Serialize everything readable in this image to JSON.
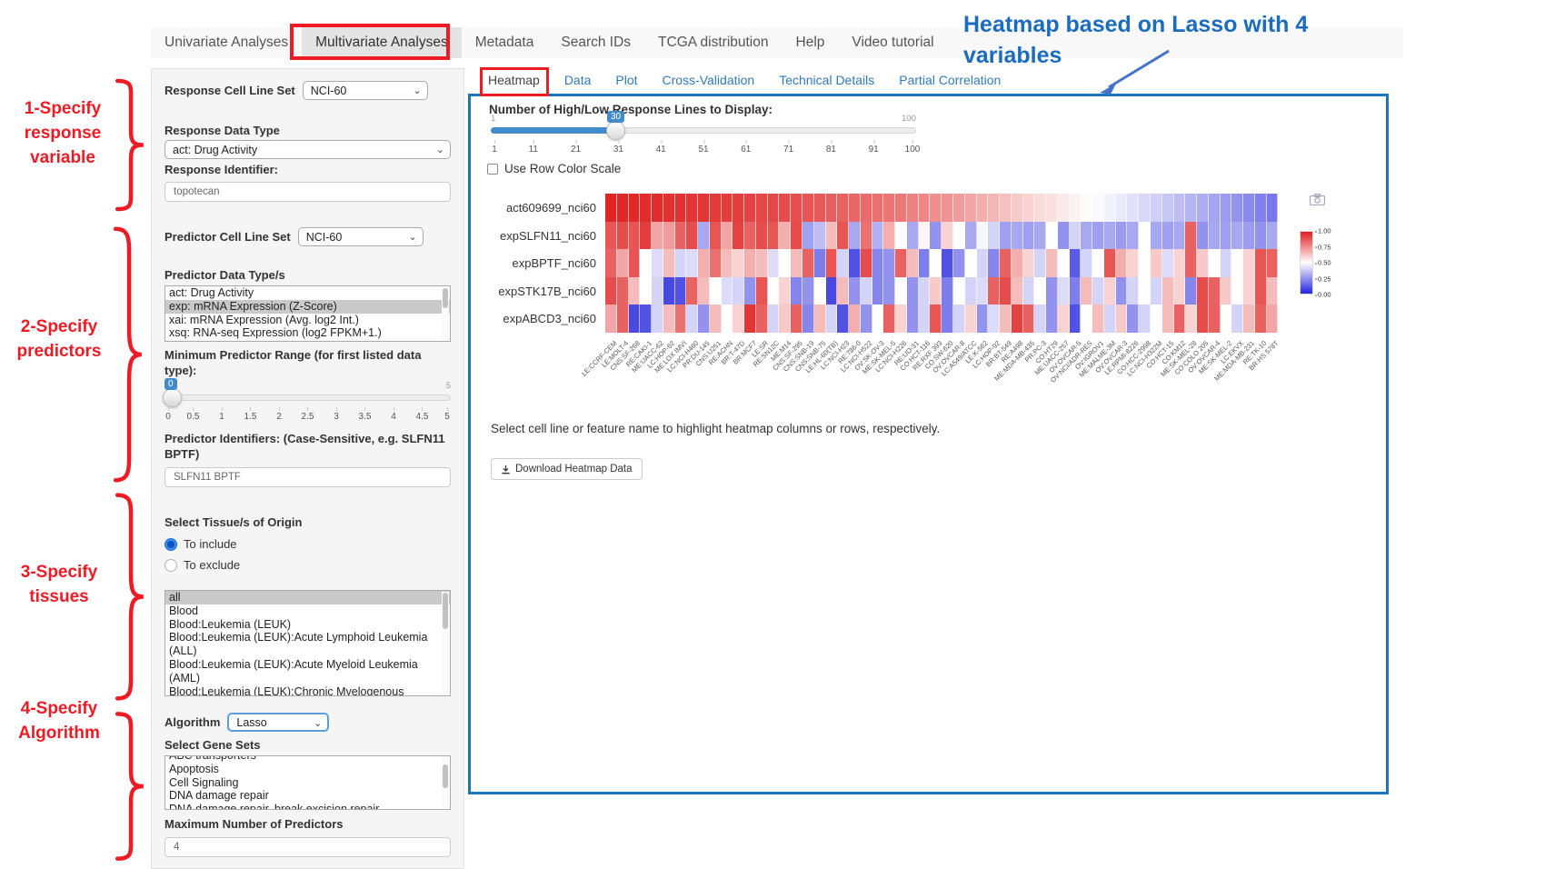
{
  "colors": {
    "annotation_red": "#ee1b24",
    "annotation_blue": "#1b6cbe",
    "panel_border_blue": "#1c75bc",
    "slider_blue": "#428bca",
    "link_blue": "#337ab7",
    "heatmap_high": "#df1f1f",
    "heatmap_mid": "#ffffff",
    "heatmap_low": "#2626dd"
  },
  "nav": {
    "items": [
      {
        "label": "Univariate Analyses",
        "active": false
      },
      {
        "label": "Multivariate Analyses",
        "active": true
      },
      {
        "label": "Metadata",
        "active": false
      },
      {
        "label": "Search IDs",
        "active": false
      },
      {
        "label": "TCGA distribution",
        "active": false
      },
      {
        "label": "Help",
        "active": false
      },
      {
        "label": "Video tutorial",
        "active": false
      }
    ]
  },
  "annotations": {
    "steps": [
      {
        "lines": [
          "1-Specify",
          "response",
          "variable"
        ]
      },
      {
        "lines": [
          "2-Specify",
          "predictors"
        ]
      },
      {
        "lines": [
          "3-Specify",
          "tissues"
        ]
      },
      {
        "lines": [
          "4-Specify",
          "Algorithm"
        ]
      }
    ],
    "callout": {
      "line1": "Heatmap based on Lasso with 4",
      "line2": "variables"
    }
  },
  "sidebar": {
    "response_cell_line_set": {
      "label": "Response Cell Line Set",
      "value": "NCI-60"
    },
    "response_data_type": {
      "label": "Response Data Type",
      "value": "act: Drug Activity"
    },
    "response_identifier": {
      "label": "Response Identifier:",
      "value": "topotecan"
    },
    "predictor_cell_line_set": {
      "label": "Predictor Cell Line Set",
      "value": "NCI-60"
    },
    "predictor_data_types": {
      "label": "Predictor Data Type/s",
      "options": [
        "act: Drug Activity",
        "exp: mRNA Expression (Z-Score)",
        "xai: mRNA Expression (Avg. log2 Int.)",
        "xsq: RNA-seq Expression (log2 FPKM+1.)"
      ],
      "selected": "exp: mRNA Expression (Z-Score)"
    },
    "min_predictor_range": {
      "label": "Minimum Predictor Range (for first listed data type):",
      "value": "0",
      "min": "0",
      "max": "5",
      "ticks": [
        "0",
        "0.5",
        "1",
        "1.5",
        "2",
        "2.5",
        "3",
        "3.5",
        "4",
        "4.5",
        "5"
      ]
    },
    "predictor_identifiers": {
      "label": "Predictor Identifiers: (Case-Sensitive, e.g. SLFN11 BPTF)",
      "value": "SLFN11 BPTF"
    },
    "tissues": {
      "label": "Select Tissue/s of Origin",
      "radios": [
        {
          "label": "To include",
          "checked": true
        },
        {
          "label": "To exclude",
          "checked": false
        }
      ],
      "options": [
        "all",
        "Blood",
        "Blood:Leukemia (LEUK)",
        "Blood:Leukemia (LEUK):Acute Lymphoid Leukemia (ALL)",
        "Blood:Leukemia (LEUK):Acute Myeloid Leukemia (AML)",
        "Blood:Leukemia (LEUK):Chronic Myelogenous Leukemia (CML)"
      ],
      "selected": "all"
    },
    "algorithm": {
      "label": "Algorithm",
      "value": "Lasso"
    },
    "gene_sets": {
      "label": "Select Gene Sets",
      "options": [
        "ABC transporters",
        "Apoptosis",
        "Cell Signaling",
        "DNA damage repair",
        "DNA damage repair, break excision repair"
      ]
    },
    "max_predictors": {
      "label": "Maximum Number of Predictors",
      "value": "4"
    }
  },
  "tabs": [
    {
      "label": "Heatmap",
      "active": true
    },
    {
      "label": "Data",
      "active": false
    },
    {
      "label": "Plot",
      "active": false
    },
    {
      "label": "Cross-Validation",
      "active": false
    },
    {
      "label": "Technical Details",
      "active": false
    },
    {
      "label": "Partial Correlation",
      "active": false
    }
  ],
  "heatmap_panel": {
    "slider": {
      "label": "Number of High/Low Response Lines to Display:",
      "value": "30",
      "min": "1",
      "max": "100",
      "ticks": [
        "1",
        "11",
        "21",
        "31",
        "41",
        "51",
        "61",
        "71",
        "81",
        "91",
        "100"
      ]
    },
    "row_scale_checkbox": {
      "label": "Use Row Color Scale",
      "checked": false
    },
    "hint": "Select cell line or feature name to highlight heatmap columns or rows, respectively.",
    "download_button": "Download Heatmap Data"
  },
  "chart_data": {
    "type": "heatmap",
    "title": "",
    "legend_position": "right",
    "rows": [
      "act609699_nci60",
      "expSLFN11_nci60",
      "expBPTF_nci60",
      "expSTK17B_nci60",
      "expABCD3_nci60"
    ],
    "columns": [
      "LE:CCRF-CEM",
      "LE:MOLT-4",
      "CNS:SF-268",
      "RE:CAKI-1",
      "ME:UACC-62",
      "LC:HOP-62",
      "ME:LOX IMVI",
      "LC:NCI-H460",
      "PR:DU-145",
      "CNS:U251",
      "RE:ACHN",
      "BR:T-47D",
      "BR:MCF7",
      "LE:SR",
      "RE:SN12C",
      "ME:M14",
      "CNS:SF-295",
      "CNS:SNB-19",
      "CNS:SNB-75",
      "LE:HL-60(TB)",
      "LC:NCI-H23",
      "RE:786-0",
      "LC:NCI-H522",
      "OV:SK-OV-3",
      "ME:SK-MEL-5",
      "LC:NCI-H226",
      "RE:UO-31",
      "CO:HCT-116",
      "RE:RXF 393",
      "CO:SW-620",
      "OV:OVCAR-8",
      "LC:A549/ATCC",
      "LE:K-562",
      "LC:HOP-92",
      "BR:BT-549",
      "RE:A498",
      "ME:MDA-MB-435",
      "PR:PC-3",
      "CO:HT29",
      "ME:UACC-257",
      "OV:OVCAR-5",
      "OV:NCI/ADR-RES",
      "OV:IGROV1",
      "ME:MALME-3M",
      "OV:OVCAR-3",
      "LE:RPMI-8226",
      "CO:HCC-2998",
      "LC:NCI-H322M",
      "CO:HCT-15",
      "CO:KM12",
      "ME:SK-MEL-28",
      "CO:COLO 205",
      "OV:OVCAR-4",
      "ME:SK-MEL-2",
      "LC:EKVX",
      "ME:MDA-MB-231",
      "RE:TK-10",
      "BR:HS 578T"
    ],
    "values": [
      [
        0.99,
        0.98,
        0.98,
        0.97,
        0.97,
        0.96,
        0.96,
        0.95,
        0.95,
        0.94,
        0.93,
        0.93,
        0.92,
        0.91,
        0.91,
        0.9,
        0.89,
        0.88,
        0.87,
        0.86,
        0.85,
        0.84,
        0.83,
        0.82,
        0.81,
        0.8,
        0.78,
        0.77,
        0.75,
        0.74,
        0.72,
        0.7,
        0.68,
        0.66,
        0.64,
        0.62,
        0.6,
        0.58,
        0.57,
        0.55,
        0.53,
        0.51,
        0.49,
        0.47,
        0.45,
        0.43,
        0.41,
        0.39,
        0.37,
        0.35,
        0.33,
        0.31,
        0.29,
        0.27,
        0.25,
        0.23,
        0.21,
        0.19
      ],
      [
        0.88,
        0.9,
        0.88,
        0.93,
        0.7,
        0.72,
        0.85,
        0.9,
        0.3,
        0.88,
        0.7,
        0.92,
        0.85,
        0.9,
        0.88,
        0.68,
        0.9,
        0.28,
        0.35,
        0.65,
        0.88,
        0.3,
        0.82,
        0.32,
        0.68,
        0.5,
        0.3,
        0.52,
        0.25,
        0.6,
        0.5,
        0.3,
        0.48,
        0.4,
        0.28,
        0.3,
        0.28,
        0.3,
        0.5,
        0.25,
        0.4,
        0.3,
        0.28,
        0.3,
        0.27,
        0.3,
        0.5,
        0.3,
        0.28,
        0.3,
        0.85,
        0.25,
        0.3,
        0.28,
        0.3,
        0.27,
        0.25,
        0.3
      ],
      [
        0.85,
        0.7,
        0.88,
        0.5,
        0.42,
        0.65,
        0.4,
        0.42,
        0.68,
        0.82,
        0.65,
        0.6,
        0.68,
        0.65,
        0.42,
        0.5,
        0.65,
        0.85,
        0.2,
        0.88,
        0.4,
        0.1,
        0.9,
        0.22,
        0.25,
        0.85,
        0.65,
        0.2,
        0.5,
        0.1,
        0.25,
        0.5,
        0.4,
        0.22,
        0.85,
        0.68,
        0.6,
        0.4,
        0.65,
        0.5,
        0.12,
        0.4,
        0.5,
        0.88,
        0.68,
        0.6,
        0.5,
        0.62,
        0.42,
        0.6,
        0.85,
        0.62,
        0.5,
        0.4,
        0.5,
        0.6,
        0.88,
        0.85
      ],
      [
        0.9,
        0.85,
        0.65,
        0.5,
        0.4,
        0.08,
        0.1,
        0.85,
        0.65,
        0.5,
        0.42,
        0.4,
        0.25,
        0.88,
        0.5,
        0.6,
        0.22,
        0.25,
        0.5,
        0.08,
        0.65,
        0.25,
        0.4,
        0.22,
        0.25,
        0.5,
        0.25,
        0.4,
        0.62,
        0.2,
        0.5,
        0.4,
        0.42,
        0.85,
        0.9,
        0.65,
        0.4,
        0.5,
        0.25,
        0.42,
        0.2,
        0.65,
        0.4,
        0.6,
        0.25,
        0.4,
        0.5,
        0.4,
        0.65,
        0.6,
        0.22,
        0.9,
        0.85,
        0.62,
        0.5,
        0.6,
        0.88,
        0.65
      ],
      [
        0.7,
        0.85,
        0.08,
        0.1,
        0.4,
        0.65,
        0.82,
        0.4,
        0.25,
        0.65,
        0.5,
        0.6,
        0.95,
        0.85,
        0.4,
        0.62,
        0.85,
        0.22,
        0.65,
        0.4,
        0.1,
        0.68,
        0.25,
        0.5,
        0.85,
        0.6,
        0.25,
        0.4,
        0.88,
        0.2,
        0.4,
        0.6,
        0.25,
        0.42,
        0.65,
        0.92,
        0.85,
        0.4,
        0.25,
        0.6,
        0.1,
        0.5,
        0.65,
        0.4,
        0.62,
        0.25,
        0.4,
        0.5,
        0.65,
        0.85,
        0.6,
        0.9,
        0.85,
        0.5,
        0.4,
        0.65,
        0.85,
        0.7
      ]
    ],
    "value_range": [
      0,
      1
    ],
    "colorbar_ticks": [
      "1.00",
      "0.75",
      "0.50",
      "0.25",
      "0.00"
    ]
  }
}
